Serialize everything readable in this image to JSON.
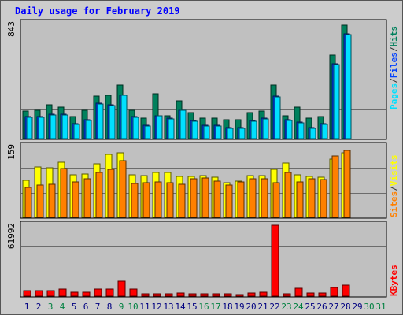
{
  "title": "Daily usage for February 2019",
  "chart_data": [
    {
      "type": "bar",
      "panel": "hits-files-pages",
      "ymax_label": "843",
      "ylim": [
        0,
        843
      ],
      "legend": [
        "Pages",
        "/",
        "Files",
        "/",
        "Hits"
      ],
      "legend_colors": [
        "#00e0ff",
        "#333333",
        "#0040ff",
        "#333333",
        "#00805c"
      ],
      "categories": [
        "1",
        "2",
        "3",
        "4",
        "5",
        "6",
        "7",
        "8",
        "9",
        "10",
        "11",
        "12",
        "13",
        "14",
        "15",
        "16",
        "17",
        "18",
        "19",
        "20",
        "21",
        "22",
        "23",
        "24",
        "25",
        "26",
        "27",
        "28",
        "29",
        "30",
        "31"
      ],
      "series": [
        {
          "name": "Hits",
          "color": "#00805c",
          "values": [
            200,
            210,
            250,
            230,
            160,
            210,
            310,
            320,
            390,
            210,
            150,
            330,
            170,
            280,
            190,
            150,
            150,
            140,
            140,
            190,
            200,
            390,
            170,
            230,
            150,
            160,
            610,
            830,
            null,
            null,
            null
          ]
        },
        {
          "name": "Files",
          "color": "#0040ff",
          "values": [
            160,
            160,
            180,
            180,
            110,
            140,
            260,
            250,
            320,
            160,
            100,
            170,
            150,
            210,
            130,
            100,
            100,
            80,
            80,
            130,
            150,
            310,
            140,
            120,
            80,
            110,
            550,
            770,
            null,
            null,
            null
          ]
        },
        {
          "name": "Pages",
          "color": "#00e0ff",
          "values": [
            155,
            155,
            175,
            175,
            105,
            135,
            255,
            245,
            315,
            155,
            95,
            165,
            145,
            205,
            125,
            95,
            95,
            75,
            75,
            125,
            145,
            305,
            135,
            115,
            75,
            105,
            545,
            765,
            null,
            null,
            null
          ]
        }
      ]
    },
    {
      "type": "bar",
      "panel": "visits-sites",
      "ymax_label": "159",
      "ylim": [
        0,
        159
      ],
      "legend": [
        "Sites",
        "/",
        "Visits"
      ],
      "legend_colors": [
        "#ff8000",
        "#333333",
        "#ffff00"
      ],
      "series": [
        {
          "name": "Visits",
          "color": "#ffff00",
          "values": [
            83,
            113,
            111,
            123,
            95,
            97,
            121,
            141,
            145,
            95,
            93,
            100,
            101,
            92,
            92,
            93,
            90,
            78,
            81,
            93,
            94,
            108,
            122,
            96,
            92,
            90,
            130,
            145,
            null,
            null,
            null
          ]
        },
        {
          "name": "Sites",
          "color": "#ff8000",
          "values": [
            68,
            72,
            75,
            110,
            79,
            86,
            100,
            108,
            128,
            76,
            78,
            79,
            77,
            75,
            86,
            88,
            82,
            72,
            80,
            86,
            86,
            78,
            101,
            80,
            87,
            85,
            137,
            150,
            null,
            null,
            null
          ]
        }
      ]
    },
    {
      "type": "bar",
      "panel": "kbytes",
      "ymax_label": "61992",
      "ylim": [
        0,
        61992
      ],
      "legend": [
        "KBytes"
      ],
      "legend_colors": [
        "#ff0000"
      ],
      "series": [
        {
          "name": "KBytes",
          "color": "#ff0000",
          "values": [
            5000,
            4900,
            4800,
            6400,
            3600,
            3100,
            6400,
            6000,
            13000,
            6300,
            2000,
            2400,
            2100,
            2500,
            2100,
            2000,
            1900,
            1800,
            1700,
            3000,
            3300,
            62000,
            1900,
            7200,
            2700,
            2600,
            7900,
            9700,
            null,
            null,
            null
          ]
        }
      ]
    }
  ],
  "day_colors": [
    "#000080",
    "#000080",
    "#008040",
    "#008040",
    "#000080",
    "#000080",
    "#000080",
    "#000080",
    "#008040",
    "#008040",
    "#000080",
    "#000080",
    "#000080",
    "#000080",
    "#000080",
    "#008040",
    "#008040",
    "#000080",
    "#000080",
    "#000080",
    "#000080",
    "#000080",
    "#008040",
    "#008040",
    "#000080",
    "#000080",
    "#000080",
    "#000080",
    "#000080",
    "#008040",
    "#008040"
  ],
  "colors": {
    "frame": "#cccccc",
    "panel": "#c0c0c0",
    "title": "#0000ff"
  }
}
